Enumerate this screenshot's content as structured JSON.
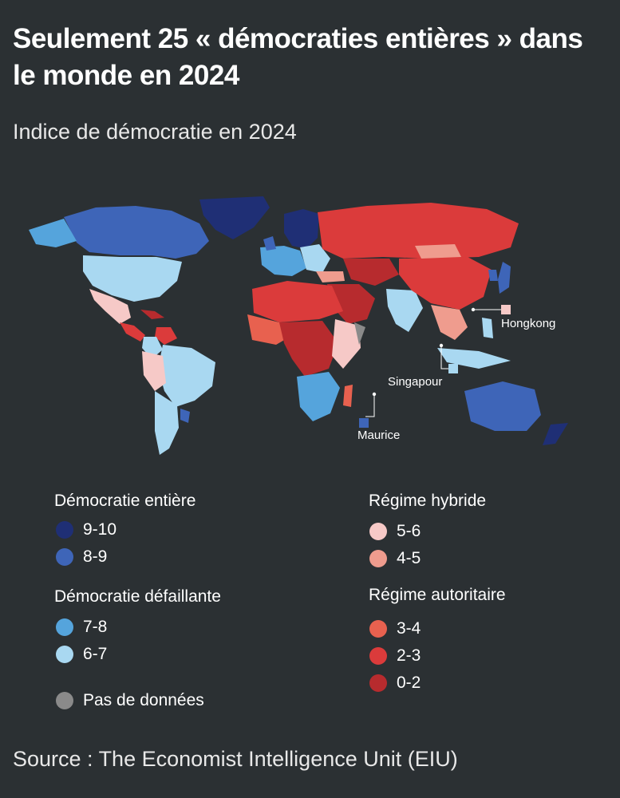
{
  "title": "Seulement 25 « démocraties entières » dans le monde en 2024",
  "subtitle": "Indice de démocratie en 2024",
  "source": "Source : The Economist Intelligence Unit (EIU)",
  "map_labels": {
    "hongkong": "Hongkong",
    "singapour": "Singapour",
    "maurice": "Maurice"
  },
  "legend": {
    "full_democracy": {
      "heading": "Démocratie entière",
      "items": [
        {
          "label": "9-10",
          "color": "#1f2f75"
        },
        {
          "label": "8-9",
          "color": "#3e65b8"
        }
      ]
    },
    "flawed_democracy": {
      "heading": "Démocratie défaillante",
      "items": [
        {
          "label": "7-8",
          "color": "#55a4dc"
        },
        {
          "label": "6-7",
          "color": "#a9d8f1"
        }
      ]
    },
    "no_data": {
      "label": "Pas de données",
      "color": "#8a8a8a"
    },
    "hybrid": {
      "heading": "Régime hybride",
      "items": [
        {
          "label": "5-6",
          "color": "#f6c9c7"
        },
        {
          "label": "4-5",
          "color": "#ef9c8e"
        }
      ]
    },
    "authoritarian": {
      "heading": "Régime autoritaire",
      "items": [
        {
          "label": "3-4",
          "color": "#e8614f"
        },
        {
          "label": "2-3",
          "color": "#db3b3b"
        },
        {
          "label": "0-2",
          "color": "#b72b2e"
        }
      ]
    }
  }
}
